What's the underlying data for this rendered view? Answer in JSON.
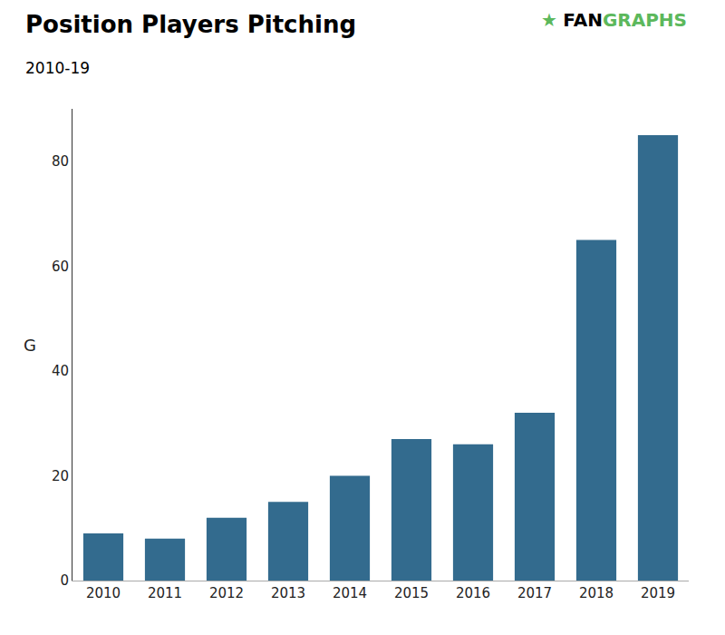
{
  "chart_data": {
    "type": "bar",
    "title": "Position Players Pitching",
    "subtitle": "2010-19",
    "ylabel": "G",
    "categories": [
      "2010",
      "2011",
      "2012",
      "2013",
      "2014",
      "2015",
      "2016",
      "2017",
      "2018",
      "2019"
    ],
    "values": [
      9,
      8,
      12,
      15,
      20,
      27,
      26,
      32,
      65,
      85
    ],
    "color": "#336b8e",
    "ylim": [
      0,
      90
    ],
    "yticks": [
      0,
      20,
      40,
      60,
      80
    ],
    "grid": false,
    "annotations": [
      {
        "text": "★",
        "color": "#5cb85c"
      },
      {
        "text": "FAN",
        "color": "#000000"
      },
      {
        "text": "GRAPHS",
        "color": "#5cb85c"
      }
    ]
  }
}
